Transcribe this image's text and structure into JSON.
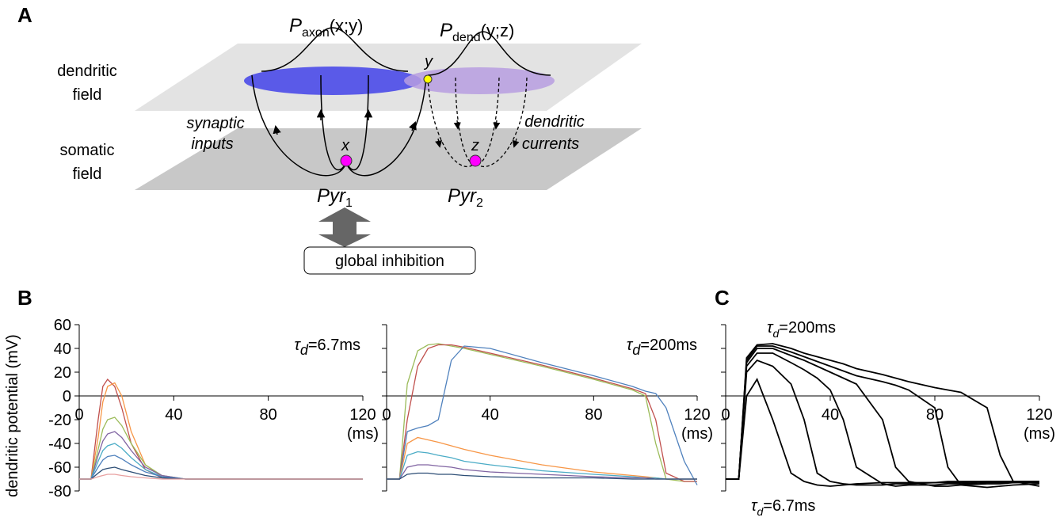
{
  "panel_a": {
    "label": "A",
    "dendritic_field": [
      "dendritic",
      "field"
    ],
    "somatic_field": [
      "somatic",
      "field"
    ],
    "synaptic_inputs": [
      "synaptic",
      "inputs"
    ],
    "dendritic_currents": [
      "dendritic",
      "currents"
    ],
    "p_axon": {
      "symbol": "P",
      "subscript": "axon",
      "args": "(x;y)"
    },
    "p_dend": {
      "symbol": "P",
      "subscript": "dend",
      "args": "(y;z)"
    },
    "point_y": "y",
    "point_x": "x",
    "point_z": "z",
    "pyr1": {
      "name": "Pyr",
      "subscript": "1"
    },
    "pyr2": {
      "name": "Pyr",
      "subscript": "2"
    },
    "global_inhibition": "global inhibition"
  },
  "panel_labels": {
    "b": "B",
    "c": "C"
  },
  "chart_data": [
    {
      "type": "line",
      "y_label": "dendritic potential (mV)",
      "x_label": "(ms)",
      "ytick_labels": true,
      "annotations": [
        {
          "symbol": "τ",
          "subscript": "d",
          "text": "=6.7ms"
        }
      ],
      "x": [
        0,
        5,
        8,
        10,
        12,
        15,
        18,
        22,
        28,
        35,
        45,
        60,
        120
      ],
      "xlim": [
        0,
        120
      ],
      "xticks": [
        0,
        40,
        80,
        120
      ],
      "ylim": [
        -80,
        60
      ],
      "yticks": [
        60,
        40,
        20,
        0,
        -20,
        -40,
        -60,
        -80
      ],
      "series": [
        {
          "color": "#c0504d",
          "values": [
            -70,
            -70,
            -20,
            8,
            14,
            8,
            -10,
            -40,
            -62,
            -69,
            -70,
            -70,
            -70
          ]
        },
        {
          "color": "#f79646",
          "values": [
            -70,
            -70,
            -35,
            -5,
            8,
            11,
            0,
            -30,
            -58,
            -68,
            -70,
            -70,
            -70
          ]
        },
        {
          "color": "#9bbb59",
          "values": [
            -70,
            -70,
            -45,
            -28,
            -20,
            -18,
            -25,
            -40,
            -58,
            -67,
            -70,
            -70,
            -70
          ]
        },
        {
          "color": "#8064a2",
          "values": [
            -70,
            -70,
            -50,
            -38,
            -32,
            -30,
            -35,
            -46,
            -60,
            -67,
            -70,
            -70,
            -70
          ]
        },
        {
          "color": "#4bacc6",
          "values": [
            -70,
            -70,
            -55,
            -46,
            -42,
            -40,
            -44,
            -52,
            -62,
            -68,
            -70,
            -70,
            -70
          ]
        },
        {
          "color": "#4f81bd",
          "values": [
            -70,
            -70,
            -60,
            -54,
            -51,
            -50,
            -53,
            -58,
            -64,
            -68,
            -70,
            -70,
            -70
          ]
        },
        {
          "color": "#2c4d75",
          "values": [
            -70,
            -70,
            -65,
            -62,
            -61,
            -60,
            -62,
            -64,
            -67,
            -69,
            -70,
            -70,
            -70
          ]
        },
        {
          "color": "#e8a0a0",
          "values": [
            -70,
            -70,
            -68,
            -67,
            -66,
            -66,
            -67,
            -68,
            -69,
            -70,
            -70,
            -70,
            -70
          ]
        }
      ]
    },
    {
      "type": "line",
      "x_label": "(ms)",
      "ytick_labels": false,
      "annotations": [
        {
          "symbol": "τ",
          "subscript": "d",
          "text": "=200ms"
        }
      ],
      "x": [
        0,
        5,
        8,
        12,
        16,
        20,
        25,
        30,
        40,
        60,
        80,
        95,
        100,
        104,
        108,
        115,
        120
      ],
      "xlim": [
        0,
        120
      ],
      "xticks": [
        0,
        40,
        80,
        120
      ],
      "ylim": [
        -80,
        60
      ],
      "yticks": [
        60,
        40,
        20,
        0,
        -20,
        -40,
        -60,
        -80
      ],
      "series": [
        {
          "color": "#9bbb59",
          "values": [
            -70,
            -70,
            10,
            38,
            43,
            44,
            42,
            40,
            35,
            25,
            14,
            5,
            0,
            -40,
            -70,
            -72,
            -72
          ]
        },
        {
          "color": "#c0504d",
          "values": [
            -70,
            -70,
            -20,
            25,
            40,
            43,
            43,
            41,
            36,
            26,
            15,
            6,
            2,
            -20,
            -65,
            -72,
            -72
          ]
        },
        {
          "color": "#4f81bd",
          "values": [
            -70,
            -70,
            -30,
            -27,
            -25,
            -20,
            30,
            42,
            40,
            28,
            17,
            8,
            4,
            2,
            -10,
            -55,
            -75
          ]
        },
        {
          "color": "#f79646",
          "values": [
            -70,
            -70,
            -40,
            -35,
            -37,
            -39,
            -42,
            -45,
            -50,
            -58,
            -64,
            -67,
            -68,
            -69,
            -70,
            -70,
            -70
          ]
        },
        {
          "color": "#4bacc6",
          "values": [
            -70,
            -70,
            -50,
            -47,
            -48,
            -50,
            -52,
            -55,
            -58,
            -63,
            -66,
            -68,
            -69,
            -69,
            -70,
            -70,
            -70
          ]
        },
        {
          "color": "#8064a2",
          "values": [
            -70,
            -70,
            -60,
            -58,
            -58,
            -59,
            -60,
            -62,
            -64,
            -66,
            -68,
            -69,
            -69,
            -70,
            -70,
            -70,
            -70
          ]
        },
        {
          "color": "#2c4d75",
          "values": [
            -70,
            -70,
            -66,
            -65,
            -65,
            -66,
            -66,
            -67,
            -68,
            -69,
            -69,
            -70,
            -70,
            -70,
            -70,
            -70,
            -70
          ]
        }
      ]
    },
    {
      "type": "line",
      "x_label": "(ms)",
      "ytick_labels": false,
      "annotations": [
        {
          "symbol": "τ",
          "subscript": "d",
          "text": "=200ms"
        },
        {
          "symbol": "τ",
          "subscript": "d",
          "text": "=6.7ms"
        }
      ],
      "x": [
        0,
        5,
        8,
        12,
        18,
        25,
        30,
        35,
        40,
        45,
        50,
        60,
        65,
        70,
        80,
        85,
        90,
        100,
        105,
        110,
        120
      ],
      "xlim": [
        0,
        120
      ],
      "xticks": [
        0,
        40,
        80,
        120
      ],
      "ylim": [
        -80,
        60
      ],
      "yticks": [
        60,
        40,
        20,
        0,
        -20,
        -40,
        -60,
        -80
      ],
      "series": [
        {
          "color": "#000000",
          "values": [
            -70,
            -70,
            0,
            14,
            -20,
            -65,
            -72,
            -75,
            -76,
            -75,
            -74,
            -73,
            -73,
            -73,
            -73,
            -72,
            -72,
            -72,
            -72,
            -72,
            -72
          ]
        },
        {
          "color": "#000000",
          "values": [
            -70,
            -70,
            20,
            30,
            25,
            10,
            -20,
            -65,
            -72,
            -74,
            -75,
            -75,
            -74,
            -74,
            -73,
            -73,
            -73,
            -72,
            -72,
            -72,
            -72
          ]
        },
        {
          "color": "#000000",
          "values": [
            -70,
            -70,
            25,
            36,
            36,
            28,
            22,
            15,
            5,
            -20,
            -60,
            -74,
            -76,
            -75,
            -75,
            -74,
            -74,
            -73,
            -73,
            -73,
            -72
          ]
        },
        {
          "color": "#000000",
          "values": [
            -70,
            -70,
            28,
            40,
            40,
            34,
            30,
            25,
            20,
            15,
            10,
            -20,
            -60,
            -72,
            -76,
            -76,
            -75,
            -74,
            -74,
            -73,
            -73
          ]
        },
        {
          "color": "#000000",
          "values": [
            -70,
            -70,
            30,
            42,
            42,
            37,
            33,
            29,
            25,
            21,
            17,
            12,
            9,
            5,
            -10,
            -60,
            -75,
            -77,
            -76,
            -75,
            -74
          ]
        },
        {
          "color": "#000000",
          "values": [
            -70,
            -70,
            32,
            43,
            44,
            40,
            36,
            33,
            30,
            27,
            23,
            18,
            15,
            12,
            7,
            5,
            3,
            -10,
            -50,
            -72,
            -76
          ]
        }
      ]
    }
  ]
}
